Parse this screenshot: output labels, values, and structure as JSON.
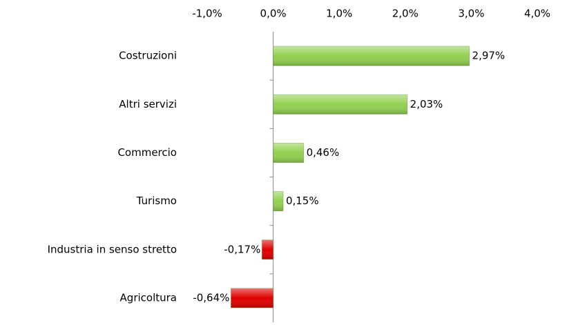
{
  "chart_data": {
    "type": "hbar",
    "categories": [
      "Costruzioni",
      "Altri servizi",
      "Commercio",
      "Turismo",
      "Industria in senso stretto",
      "Agricoltura"
    ],
    "values": [
      2.97,
      2.03,
      0.46,
      0.15,
      -0.17,
      -0.64
    ],
    "value_labels": [
      "2,97%",
      "2,03%",
      "0,46%",
      "0,15%",
      "-0,17%",
      "-0,64%"
    ],
    "colors": [
      "#92d050",
      "#92d050",
      "#92d050",
      "#92d050",
      "#e00000",
      "#e00000"
    ],
    "xlim": [
      -1,
      4
    ],
    "xticks": [
      {
        "value": -1,
        "label": "-1,0%"
      },
      {
        "value": 0,
        "label": "0,0%"
      },
      {
        "value": 1,
        "label": "1,0%"
      },
      {
        "value": 2,
        "label": "2,0%"
      },
      {
        "value": 3,
        "label": "3,0%"
      },
      {
        "value": 4,
        "label": "4,0%"
      }
    ]
  }
}
